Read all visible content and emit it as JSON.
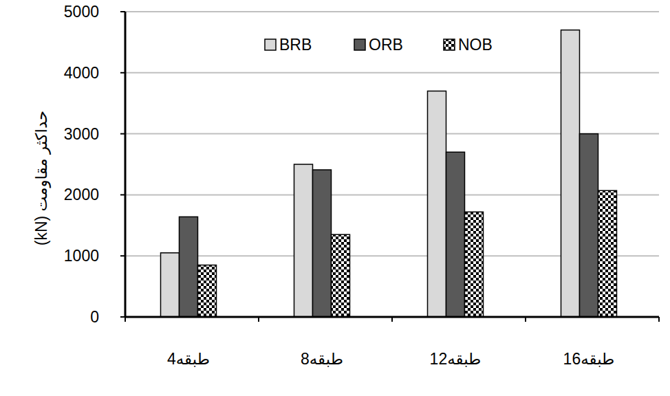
{
  "chart_data": {
    "type": "bar",
    "y_label": "حداکثر مقاومت (kN)",
    "categories": [
      "4طبقه",
      "8طبقه",
      "12طبقه",
      "16طبقه"
    ],
    "series": [
      {
        "name": "BRB",
        "color": "#d9d9d9",
        "values": [
          1050,
          2500,
          3700,
          4700
        ]
      },
      {
        "name": "ORB",
        "color": "#595959",
        "values": [
          1640,
          2410,
          2700,
          3000
        ]
      },
      {
        "name": "NOB",
        "color": "#000000",
        "marker": "square",
        "values": [
          850,
          1350,
          1720,
          2070
        ]
      }
    ],
    "ylim": [
      0,
      5000
    ],
    "yticks": [
      0,
      1000,
      2000,
      3000,
      4000,
      5000
    ],
    "grid": true,
    "legend": "top"
  }
}
